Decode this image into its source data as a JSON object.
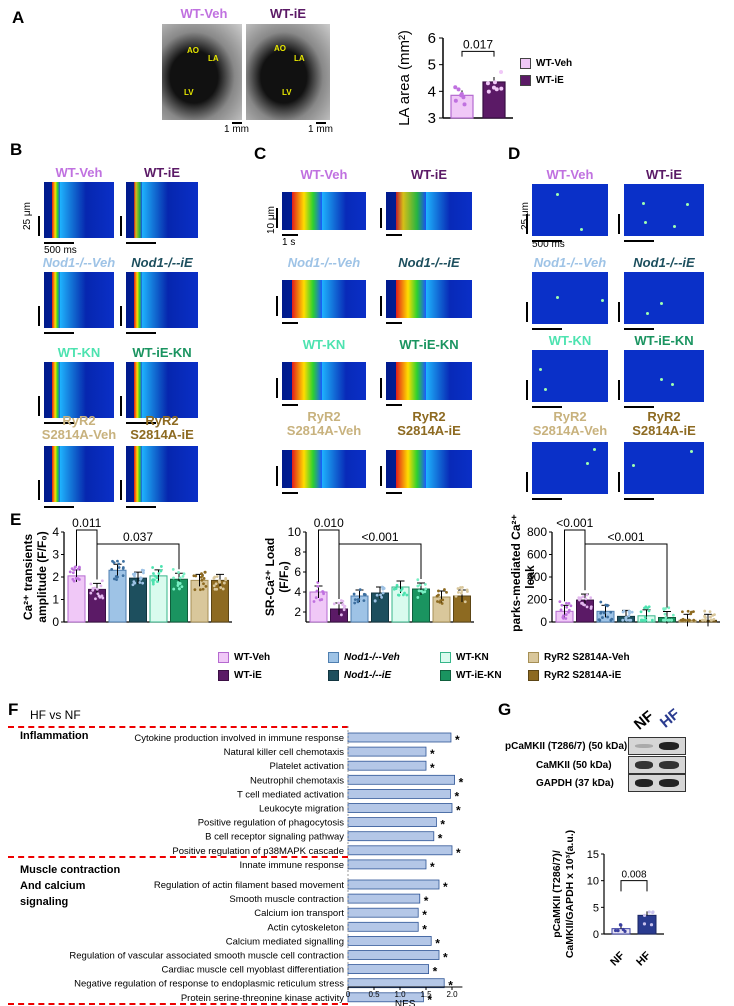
{
  "panels": {
    "A": "A",
    "B": "B",
    "C": "C",
    "D": "D",
    "E": "E",
    "F": "F",
    "G": "G"
  },
  "groups": {
    "wt_veh": "WT-Veh",
    "wt_ie": "WT-iE",
    "nod1_veh": "Nod1-/--Veh",
    "nod1_ie": "Nod1-/--iE",
    "wt_kn": "WT-KN",
    "wt_ie_kn": "WT-iE-KN",
    "ryr2_veh_1": "RyR2",
    "ryr2_veh_2": "S2814A-Veh",
    "ryr2_ie_1": "RyR2",
    "ryr2_ie_2": "S2814A-iE"
  },
  "colors": {
    "wt_veh": "#c071e0",
    "wt_ie": "#5b1a66",
    "nod1_veh": "#9ec3e6",
    "nod1_ie": "#1d4f5e",
    "wt_kn": "#4de3b0",
    "wt_ie_kn": "#1a9460",
    "ryr2_veh": "#c8b27e",
    "ryr2_ie": "#8d6a21"
  },
  "panel_a": {
    "echo_labels": [
      "AO",
      "LA",
      "LV"
    ],
    "scale": "1 mm",
    "pvalue": "0.017",
    "legend": [
      "WT-Veh",
      "WT-iE"
    ]
  },
  "panel_b": {
    "scale_y": "25 μm",
    "scale_x": "500 ms"
  },
  "panel_c": {
    "scale_y": "10 μm",
    "scale_x": "1 s",
    "pvalue_1": "0.010",
    "pvalue_2": "<0.001"
  },
  "panel_d": {
    "scale_y": "25 μm",
    "scale_x": "500 ms"
  },
  "panel_e": {
    "pvalues_1": [
      "0.011",
      "0.037"
    ],
    "pvalues_2": [
      "0.010",
      "<0.001"
    ],
    "pvalues_3": [
      "<0.001",
      "<0.001"
    ],
    "legend": [
      "WT-Veh",
      "Nod1-/--Veh",
      "WT-KN",
      "RyR2 S2814A-Veh",
      "WT-iE",
      "Nod1-/--iE",
      "WT-iE-KN",
      "RyR2 S2814A-iE"
    ]
  },
  "chart_data": [
    {
      "id": "A",
      "type": "bar",
      "categories": [
        "WT-Veh",
        "WT-iE"
      ],
      "values": [
        3.85,
        4.35
      ],
      "ylabel": "LA area (mm²)",
      "ylim": [
        3,
        6
      ],
      "yticks": [
        3,
        4,
        5,
        6
      ]
    },
    {
      "id": "E1",
      "type": "bar",
      "categories": [
        "WT-Veh",
        "WT-iE",
        "Nod1-/--Veh",
        "Nod1-/--iE",
        "WT-KN",
        "WT-iE-KN",
        "RyR2 S2814A-Veh",
        "RyR2 S2814A-iE"
      ],
      "values": [
        2.05,
        1.45,
        2.3,
        1.95,
        2.05,
        1.9,
        1.85,
        1.85
      ],
      "ylabel": "Ca²⁺ transients amplitude (F/F₀)",
      "ylim": [
        0,
        4
      ],
      "yticks": [
        0,
        1,
        2,
        3,
        4
      ]
    },
    {
      "id": "E2",
      "type": "bar",
      "categories": [
        "WT-Veh",
        "WT-iE",
        "Nod1-/--Veh",
        "Nod1-/--iE",
        "WT-KN",
        "WT-iE-KN",
        "RyR2 S2814A-Veh",
        "RyR2 S2814A-iE"
      ],
      "values": [
        4.0,
        2.3,
        3.6,
        3.9,
        4.5,
        4.3,
        3.5,
        3.6
      ],
      "ylabel": "SR-Ca²⁺ Load (F/F₀)",
      "ylim": [
        1,
        10
      ],
      "yticks": [
        2,
        4,
        6,
        8,
        10
      ]
    },
    {
      "id": "E3",
      "type": "bar",
      "categories": [
        "WT-Veh",
        "WT-iE",
        "Nod1-/--Veh",
        "Nod1-/--iE",
        "WT-KN",
        "WT-iE-KN",
        "RyR2 S2814A-Veh",
        "RyR2 S2814A-iE"
      ],
      "values": [
        95,
        195,
        95,
        50,
        55,
        40,
        15,
        15
      ],
      "ylabel": "Sparks-mediated Ca²⁺ leak",
      "ylim": [
        0,
        800
      ],
      "yticks": [
        0,
        200,
        400,
        600,
        800
      ]
    },
    {
      "id": "F",
      "type": "bar",
      "orientation": "horizontal",
      "subtitle": "HF vs NF",
      "xlabel": "NES",
      "xlim": [
        0,
        2.2
      ],
      "xticks": [
        0,
        0.5,
        1.0,
        1.5,
        2.0
      ],
      "sections": [
        "Inflammation",
        "Muscle contraction",
        "And calcium",
        "signaling"
      ],
      "categories": [
        "Cytokine production involved in immune response",
        "Natural killer cell chemotaxis",
        "Platelet activation",
        "Neutrophil chemotaxis",
        "T cell mediated activation",
        "Leukocyte migration",
        "Positive regulation of phagocytosis",
        "B cell receptor signaling pathway",
        "Positive regulation of p38MAPK cascade",
        "Innate immune response",
        "Regulation of actin filament based movement",
        "Smooth muscle contraction",
        "Calcium ion transport",
        "Actin cytoskeleton",
        "Calcium mediated signalling",
        "Regulation of vascular associated smooth muscle cell contraction",
        "Cardiac muscle cell myoblast differentiation",
        "Negative regulation of response to endoplasmic reticulum stress",
        "Protein serine-threonine kinase activity"
      ],
      "values": [
        1.98,
        1.5,
        1.5,
        2.05,
        1.97,
        2.0,
        1.7,
        1.65,
        2.0,
        1.5,
        1.75,
        1.38,
        1.35,
        1.35,
        1.6,
        1.75,
        1.55,
        1.85,
        1.45
      ],
      "marker": "*"
    },
    {
      "id": "G",
      "type": "bar",
      "categories": [
        "NF",
        "HF"
      ],
      "values": [
        1.0,
        3.5
      ],
      "ylabel": "pCaMKII (T286/7)/ CaMKII/GAPDH x 10³(a.u.)",
      "ylim": [
        0,
        15
      ],
      "yticks": [
        0,
        5,
        10,
        15
      ],
      "pvalue": "0.008"
    }
  ],
  "panel_g": {
    "blot_labels": [
      "pCaMKII (T286/7) (50 kDa)",
      "CaMKII (50 kDa)",
      "GAPDH (37 kDa)"
    ],
    "lanes": [
      "NF",
      "HF"
    ]
  }
}
